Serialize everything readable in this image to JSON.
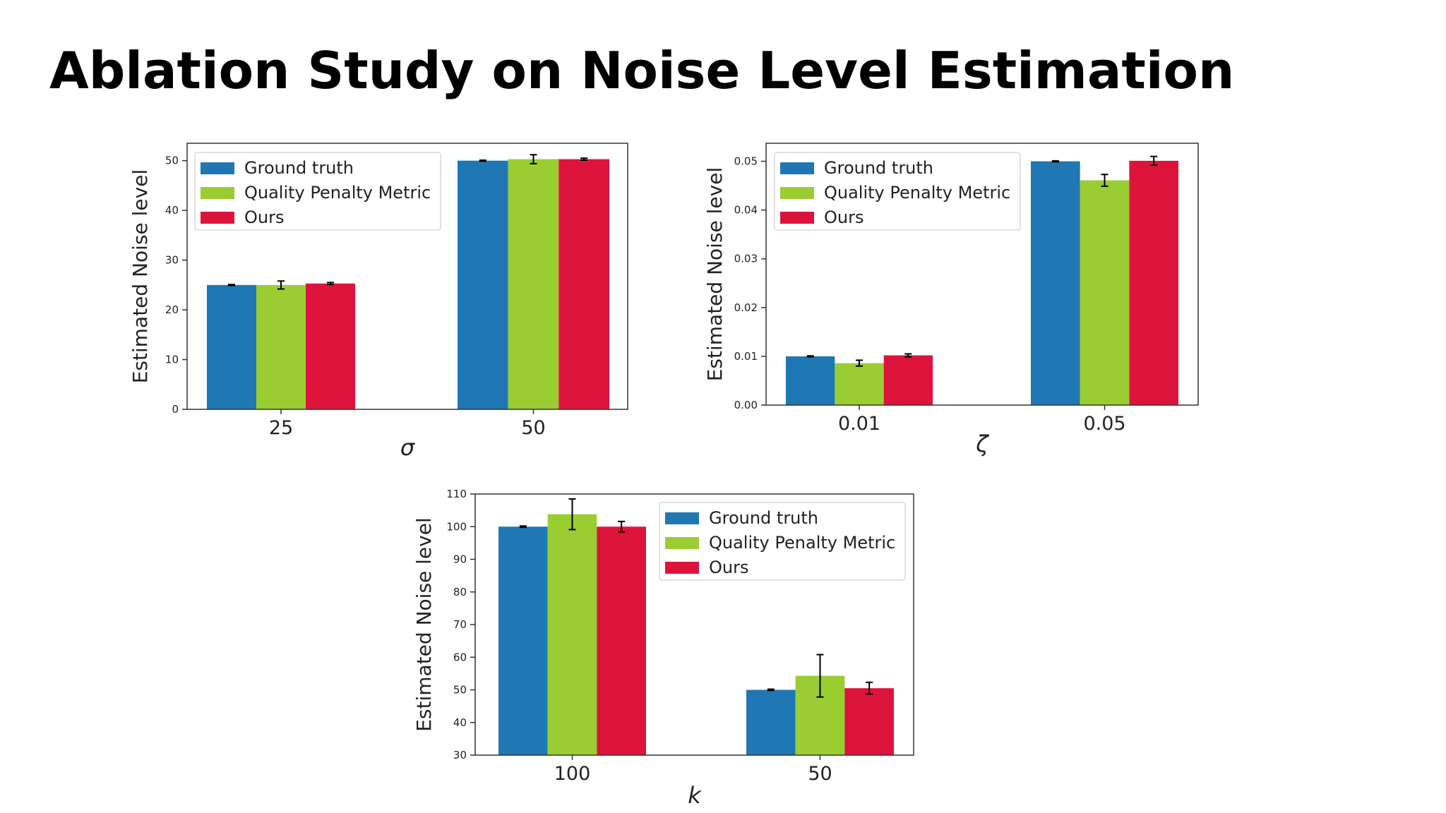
{
  "slide": {
    "title": "Ablation Study on Noise Level Estimation"
  },
  "legend": {
    "entries": [
      "Ground truth",
      "Quality Penalty Metric",
      "Ours"
    ]
  },
  "colors": {
    "ground_truth": "#1f77b4",
    "quality_penalty": "#9acd32",
    "ours": "#dc143c",
    "axis": "#333333",
    "error_bar": "#000000"
  },
  "chart_data": [
    {
      "type": "bar",
      "title": "",
      "xlabel": "σ",
      "ylabel": "Estimated Noise level",
      "categories": [
        "25",
        "50"
      ],
      "ylim": [
        0,
        53.5
      ],
      "yticks": [
        "0",
        "10",
        "20",
        "30",
        "40",
        "50"
      ],
      "ytick_values": [
        0,
        10,
        20,
        30,
        40,
        50
      ],
      "legend_position": "top-left",
      "grid": false,
      "series": [
        {
          "name": "Ground truth",
          "values": [
            25.0,
            50.0
          ],
          "errors": [
            0.1,
            0.1
          ]
        },
        {
          "name": "Quality Penalty Metric",
          "values": [
            25.0,
            50.3
          ],
          "errors": [
            0.8,
            0.9
          ]
        },
        {
          "name": "Ours",
          "values": [
            25.3,
            50.3
          ],
          "errors": [
            0.2,
            0.2
          ]
        }
      ]
    },
    {
      "type": "bar",
      "title": "",
      "xlabel": "ζ",
      "ylabel": "Estimated Noise level",
      "categories": [
        "0.01",
        "0.05"
      ],
      "ylim": [
        0,
        0.0537
      ],
      "yticks": [
        "0.00",
        "0.01",
        "0.02",
        "0.03",
        "0.04",
        "0.05"
      ],
      "ytick_values": [
        0,
        0.01,
        0.02,
        0.03,
        0.04,
        0.05
      ],
      "legend_position": "top-left",
      "grid": false,
      "series": [
        {
          "name": "Ground truth",
          "values": [
            0.01,
            0.05
          ],
          "errors": [
            0.0001,
            0.0001
          ]
        },
        {
          "name": "Quality Penalty Metric",
          "values": [
            0.0086,
            0.0461
          ],
          "errors": [
            0.0006,
            0.0012
          ]
        },
        {
          "name": "Ours",
          "values": [
            0.0102,
            0.0501
          ],
          "errors": [
            0.0003,
            0.0009
          ]
        }
      ]
    },
    {
      "type": "bar",
      "title": "",
      "xlabel": "k",
      "ylabel": "Estimated Noise level",
      "categories": [
        "100",
        "50"
      ],
      "ylim": [
        30,
        110
      ],
      "yticks": [
        "30",
        "40",
        "50",
        "60",
        "70",
        "80",
        "90",
        "100",
        "110"
      ],
      "ytick_values": [
        30,
        40,
        50,
        60,
        70,
        80,
        90,
        100,
        110
      ],
      "legend_position": "top-right",
      "grid": false,
      "series": [
        {
          "name": "Ground truth",
          "values": [
            100.0,
            50.0
          ],
          "errors": [
            0.2,
            0.2
          ]
        },
        {
          "name": "Quality Penalty Metric",
          "values": [
            103.8,
            54.3
          ],
          "errors": [
            4.7,
            6.5
          ]
        },
        {
          "name": "Ours",
          "values": [
            100.0,
            50.5
          ],
          "errors": [
            1.6,
            1.8
          ]
        }
      ]
    }
  ]
}
